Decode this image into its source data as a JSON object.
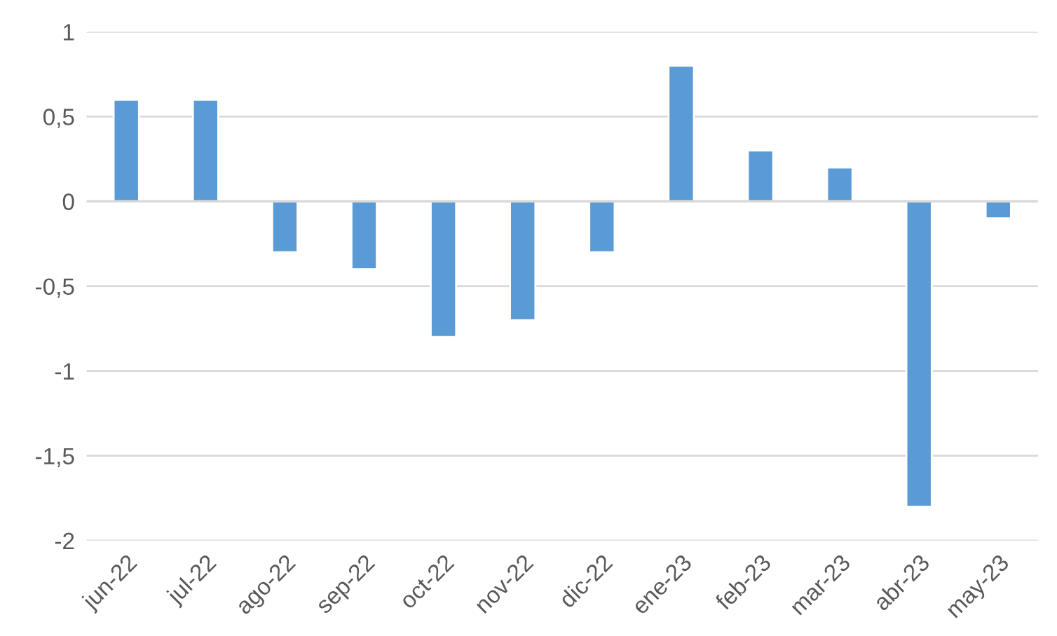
{
  "chart_data": {
    "type": "bar",
    "categories": [
      "jun-22",
      "jul-22",
      "ago-22",
      "sep-22",
      "oct-22",
      "nov-22",
      "dic-22",
      "ene-23",
      "feb-23",
      "mar-23",
      "abr-23",
      "may-23"
    ],
    "values": [
      0.6,
      0.6,
      -0.3,
      -0.4,
      -0.8,
      -0.7,
      -0.3,
      0.8,
      0.3,
      0.2,
      -1.8,
      -0.1
    ],
    "color": "#5b9bd5",
    "ylim": [
      -2,
      1
    ],
    "yticks": [
      1,
      {
        "value": 0.5,
        "label": "0,5"
      },
      0,
      {
        "value": -0.5,
        "label": "-0,5"
      },
      -1,
      {
        "value": -1.5,
        "label": "-1,5"
      },
      -2
    ],
    "grid": "y",
    "legend": false
  }
}
